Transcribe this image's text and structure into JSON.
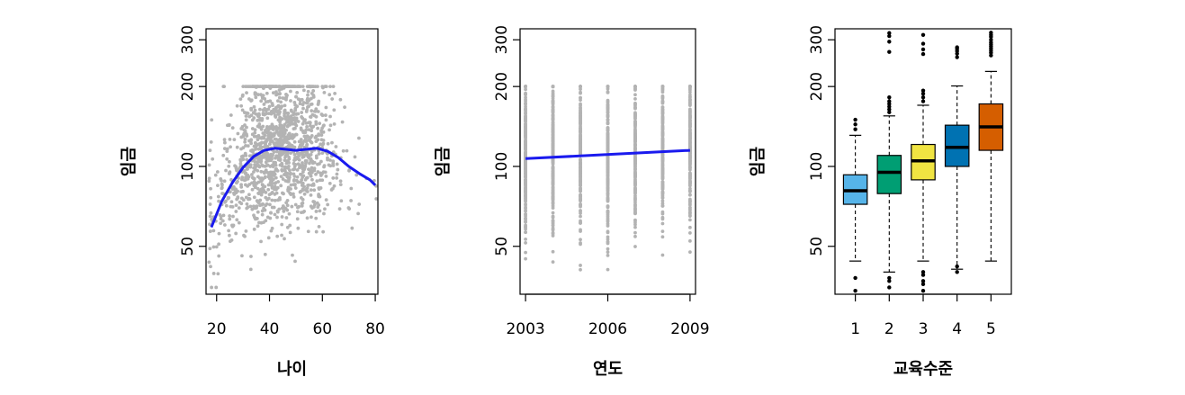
{
  "chart_data": [
    {
      "type": "scatter",
      "xlabel": "나이",
      "ylabel": "임금",
      "xlim": [
        16,
        81
      ],
      "ylim": [
        33,
        330
      ],
      "x_ticks": [
        "20",
        "40",
        "60",
        "80"
      ],
      "x_tick_values": [
        20,
        40,
        60,
        80
      ],
      "y_ticks": [
        "50",
        "100",
        "200",
        "300"
      ],
      "y_tick_values": [
        50,
        100,
        200,
        300
      ],
      "point_color": "#b3b3b3",
      "fit_color": "#1a1aee",
      "series": [
        {
          "kind": "smooth-fit",
          "x": [
            18,
            22,
            26,
            30,
            34,
            38,
            42,
            46,
            50,
            54,
            58,
            62,
            66,
            70,
            74,
            78,
            80
          ],
          "y": [
            59,
            74,
            87,
            99,
            109,
            115,
            117,
            116,
            115,
            116,
            117,
            114,
            108,
            100,
            94,
            89,
            85
          ]
        }
      ]
    },
    {
      "type": "scatter",
      "xlabel": "연도",
      "ylabel": "임금",
      "xlim": [
        2002.8,
        2009.2
      ],
      "ylim": [
        33,
        330
      ],
      "x_ticks": [
        "2003",
        "2006",
        "2009"
      ],
      "x_tick_values": [
        2003,
        2006,
        2009
      ],
      "y_ticks": [
        "50",
        "100",
        "200",
        "300"
      ],
      "y_tick_values": [
        50,
        100,
        200,
        300
      ],
      "point_color": "#b3b3b3",
      "fit_color": "#1a1aee",
      "series": [
        {
          "kind": "linear-fit",
          "x": [
            2003,
            2009
          ],
          "y": [
            107,
            115
          ]
        }
      ]
    },
    {
      "type": "box",
      "xlabel": "교육수준",
      "ylabel": "임금",
      "xlim": [
        0.4,
        5.6
      ],
      "ylim": [
        33,
        330
      ],
      "x_ticks": [
        "1",
        "2",
        "3",
        "4",
        "5"
      ],
      "y_ticks": [
        "50",
        "100",
        "200",
        "300"
      ],
      "y_tick_values": [
        50,
        100,
        200,
        300
      ],
      "categories": [
        "1",
        "2",
        "3",
        "4",
        "5"
      ],
      "colors": [
        "#56b4e9",
        "#009e73",
        "#f0e442",
        "#0072b2",
        "#d55e00"
      ],
      "boxes": [
        {
          "lower_whisker": 44,
          "q1": 72,
          "median": 81,
          "q3": 93,
          "upper_whisker": 131,
          "outliers": [
            138,
            144,
            150,
            38,
            34
          ]
        },
        {
          "lower_whisker": 40,
          "q1": 79,
          "median": 95,
          "q3": 110,
          "upper_whisker": 155,
          "outliers": [
            160,
            164,
            168,
            172,
            176,
            182,
            270,
            295,
            310,
            318,
            37,
            35,
            38
          ]
        },
        {
          "lower_whisker": 44,
          "q1": 89,
          "median": 105,
          "q3": 121,
          "upper_whisker": 170,
          "outliers": [
            176,
            182,
            188,
            193,
            265,
            276,
            290,
            313,
            40,
            36,
            34,
            37,
            39
          ]
        },
        {
          "lower_whisker": 41,
          "q1": 100,
          "median": 118,
          "q3": 143,
          "upper_whisker": 201,
          "outliers": [
            258,
            266,
            272,
            277,
            281,
            40,
            42
          ]
        },
        {
          "lower_whisker": 44,
          "q1": 115,
          "median": 141,
          "q3": 172,
          "upper_whisker": 228,
          "outliers": [
            262,
            268,
            273,
            278,
            283,
            288,
            293,
            300,
            308,
            313,
            319
          ]
        }
      ]
    }
  ]
}
